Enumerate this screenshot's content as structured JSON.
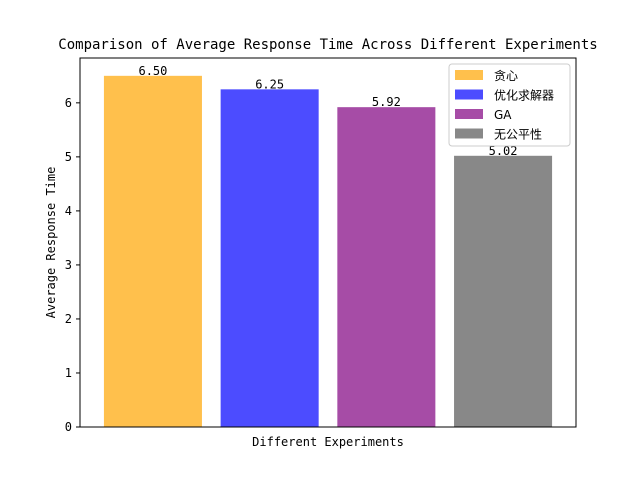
{
  "chart_data": {
    "type": "bar",
    "title": "Comparison of Average Response Time Across Different Experiments",
    "xlabel": "Different Experiments",
    "ylabel": "Average Response Time",
    "ylim": [
      0,
      6.83
    ],
    "yticks": [
      0,
      1,
      2,
      3,
      4,
      5,
      6
    ],
    "grid": false,
    "legend_position": "top-right",
    "series": [
      {
        "name": "贪心",
        "value": 6.5,
        "label": "6.50",
        "color": "#ffa500"
      },
      {
        "name": "优化求解器",
        "value": 6.25,
        "label": "6.25",
        "color": "#0000ff"
      },
      {
        "name": "GA",
        "value": 5.92,
        "label": "5.92",
        "color": "#800080"
      },
      {
        "name": "无公平性",
        "value": 5.02,
        "label": "5.02",
        "color": "#555555"
      }
    ]
  }
}
